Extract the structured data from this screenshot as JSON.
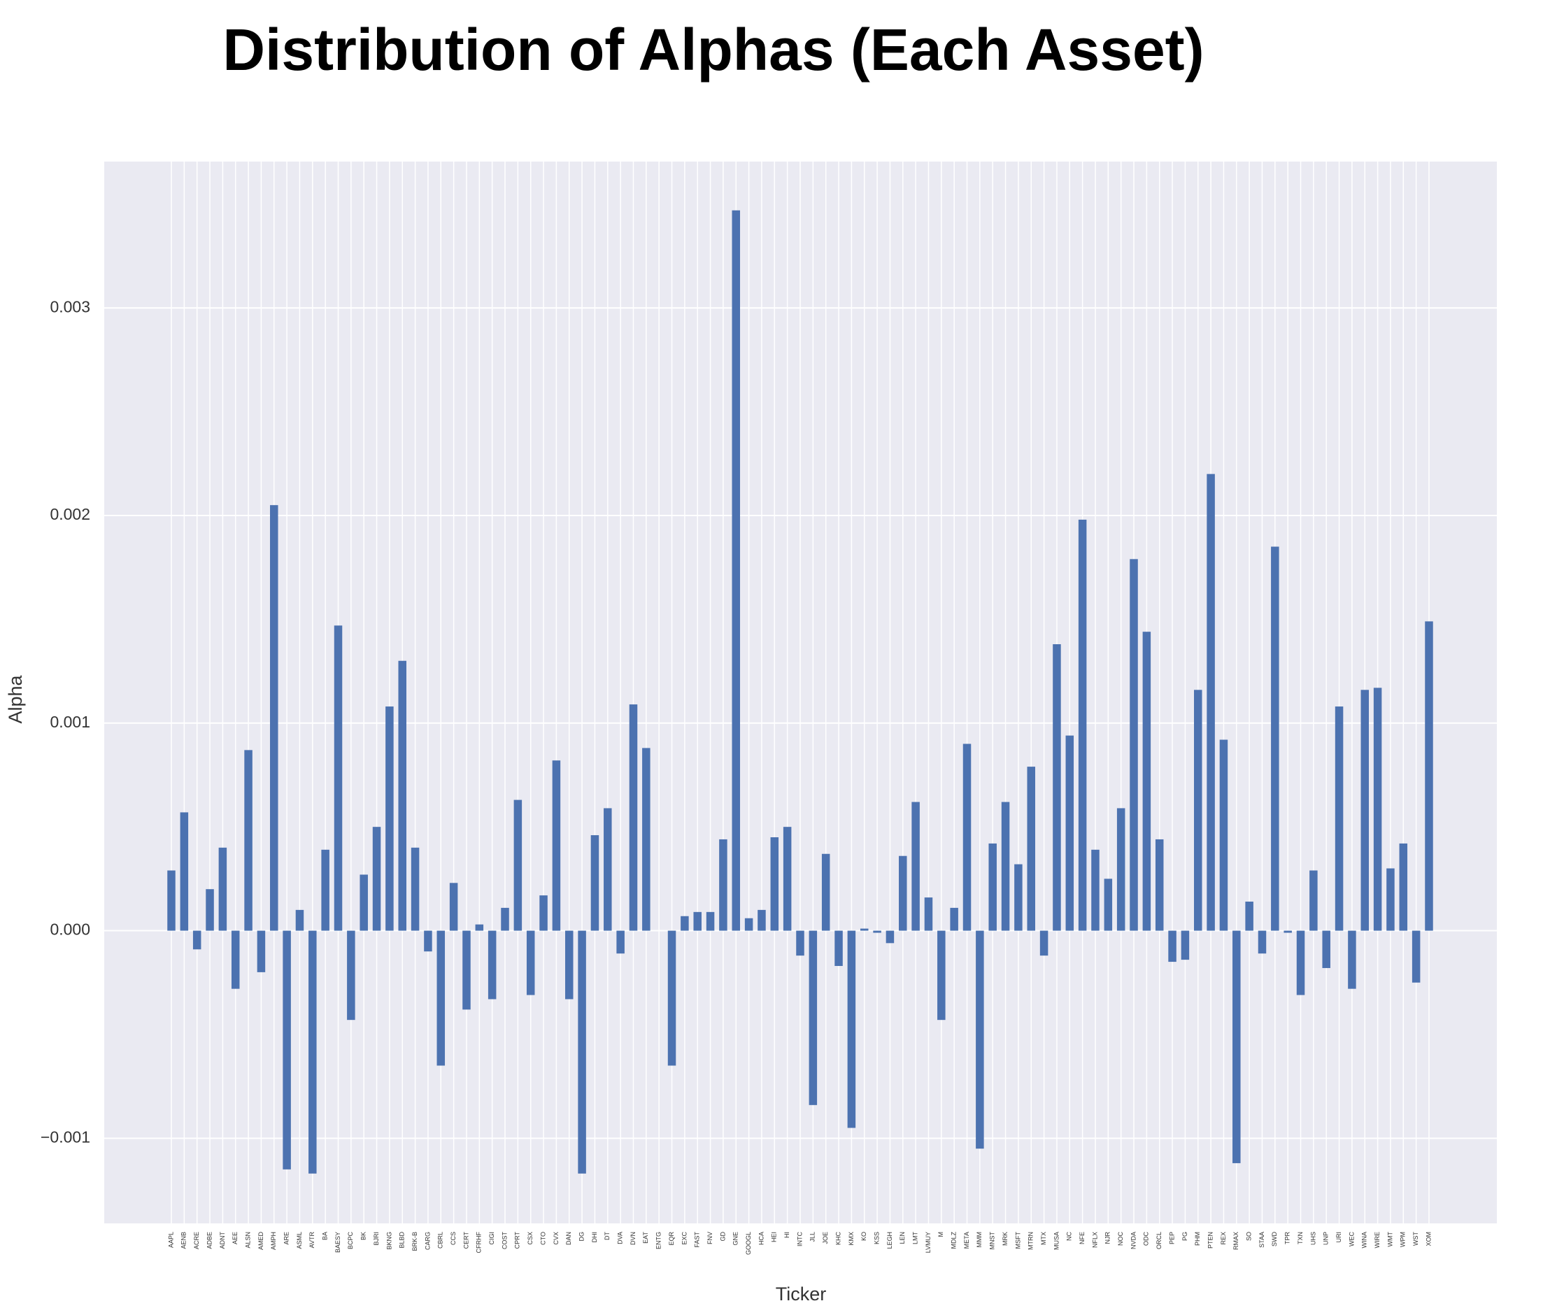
{
  "chart_data": {
    "type": "bar",
    "title": "Distribution of Alphas (Each Asset)",
    "x_label": "Ticker",
    "y_label": "Alpha",
    "categories": [
      "AAPL",
      "AENB",
      "ACRE",
      "ADBE",
      "ADNT",
      "AEE",
      "ALSN",
      "AMED",
      "AMPH",
      "ARE",
      "ASML",
      "AVTR",
      "BA",
      "BAESY",
      "BCPC",
      "BK",
      "BJRI",
      "BKNG",
      "BLBD",
      "BRK-B",
      "CARG",
      "CBRL",
      "CCS",
      "CERT",
      "CFRHF",
      "CIGI",
      "COST",
      "CPRT",
      "CSX",
      "CTO",
      "CVX",
      "DAN",
      "DG",
      "DHI",
      "DT",
      "DVA",
      "DVN",
      "EAT",
      "ENTG",
      "EQR",
      "EXC",
      "FAST",
      "FNV",
      "GD",
      "GNE",
      "GOOGL",
      "HCA",
      "HEI",
      "HI",
      "INTC",
      "JLL",
      "JOE",
      "KHC",
      "KMX",
      "KO",
      "KSS",
      "LEGH",
      "LEN",
      "LMT",
      "LVMUY",
      "M",
      "MDLZ",
      "META",
      "MMM",
      "MNST",
      "MRK",
      "MSFT",
      "MTRN",
      "MTX",
      "MUSA",
      "NC",
      "NFE",
      "NFLX",
      "NJR",
      "NOC",
      "NVDA",
      "ODC",
      "ORCL",
      "PEP",
      "PG",
      "PHM",
      "PTEN",
      "REX",
      "RMAX",
      "SO",
      "STAA",
      "SWD",
      "TPR",
      "TXN",
      "UHS",
      "UNP",
      "URI",
      "WEC",
      "WINA",
      "WIRE",
      "WMT",
      "WPM",
      "WST",
      "XOM"
    ],
    "values": [
      0.00029,
      0.00057,
      -9e-05,
      0.0002,
      0.0004,
      -0.00028,
      0.00087,
      -0.0002,
      0.00205,
      -0.00115,
      0.0001,
      -0.00117,
      0.00039,
      0.00147,
      -0.00043,
      0.00027,
      0.0005,
      0.00108,
      0.0013,
      0.0004,
      -0.0001,
      -0.00065,
      0.00023,
      -0.00038,
      3e-05,
      -0.00033,
      0.00011,
      0.00063,
      -0.00031,
      0.00017,
      0.00082,
      -0.00033,
      -0.00117,
      0.00046,
      0.00059,
      -0.00011,
      0.00109,
      0.00088,
      0,
      -0.00065,
      7e-05,
      9e-05,
      9e-05,
      0.00044,
      0.00347,
      6e-05,
      0.0001,
      0.00045,
      0.0005,
      -0.00012,
      -0.00084,
      0.00037,
      -0.00017,
      -0.00095,
      1e-05,
      -1e-05,
      -6e-05,
      0.00036,
      0.00062,
      0.00016,
      -0.00043,
      0.00011,
      0.0009,
      -0.00105,
      0.00042,
      0.00062,
      0.00032,
      0.00079,
      -0.00012,
      0.00138,
      0.00094,
      0.00198,
      0.00039,
      0.00025,
      0.00059,
      0.00179,
      0.00144,
      0.00044,
      -0.00015,
      -0.00014,
      0.00116,
      0.0022,
      0.00092,
      -0.00112,
      0.00014,
      -0.00011,
      0.00185,
      -1e-05,
      -0.00031,
      0.00029,
      -0.00018,
      0.00108,
      -0.00028,
      0.00116,
      0.00117,
      0.0003,
      0.00042,
      -0.00025,
      0.00149
    ],
    "color": "#4c72b0",
    "background": "#eaeaf2",
    "grid": true,
    "ylim": [
      -0.00141,
      0.003705
    ],
    "yticks": [
      {
        "value": -0.001,
        "label": "−0.001"
      },
      {
        "value": 0,
        "label": "0.000"
      },
      0.001,
      0.002,
      0.003
    ]
  }
}
